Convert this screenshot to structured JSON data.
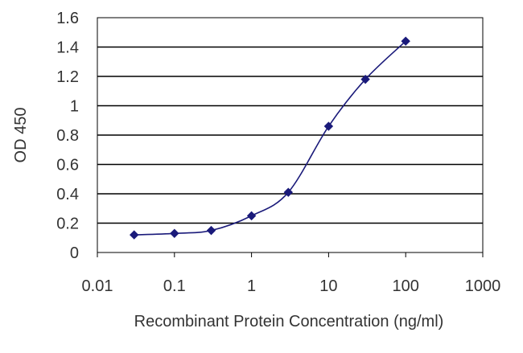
{
  "chart_data": {
    "type": "line",
    "title": "",
    "xlabel": "Recombinant Protein Concentration (ng/ml)",
    "ylabel": "OD 450",
    "x_scale": "log",
    "xlim": [
      0.01,
      1000
    ],
    "ylim": [
      0,
      1.6
    ],
    "x_ticks": [
      0.01,
      0.1,
      1,
      10,
      100,
      1000
    ],
    "x_tick_labels": [
      "0.01",
      "0.1",
      "1",
      "10",
      "100",
      "1000"
    ],
    "y_ticks": [
      0,
      0.2,
      0.4,
      0.6,
      0.8,
      1,
      1.2,
      1.4,
      1.6
    ],
    "y_tick_labels": [
      "0",
      "0.2",
      "0.4",
      "0.6",
      "0.8",
      "1",
      "1.2",
      "1.4",
      "1.6"
    ],
    "grid": "horizontal",
    "legend": "none",
    "series": [
      {
        "x": [
          0.03,
          0.1,
          0.3,
          1,
          3,
          10,
          30,
          100
        ],
        "y": [
          0.12,
          0.13,
          0.15,
          0.25,
          0.41,
          0.86,
          1.18,
          1.44
        ],
        "color": "#1a1a7a",
        "marker": "diamond"
      }
    ],
    "colors": {
      "line": "#1a1a7a",
      "marker": "#1a1a7a",
      "grid": "#000000",
      "axis": "#000000",
      "text": "#333333"
    }
  }
}
